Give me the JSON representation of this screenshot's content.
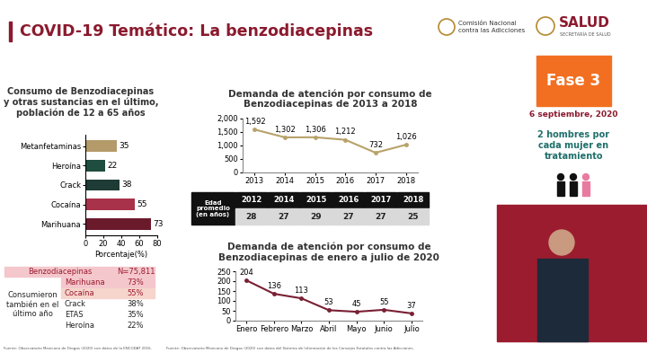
{
  "title": "COVID-19 Temático: La benzodiacepinas",
  "logos": {
    "conadic": "Comisión Nacional\ncontra las Adicciones",
    "salud": "SALUD",
    "salud_sub": "SECRETARÍA DE SALUD"
  },
  "sidebar": {
    "phase": "Fase 3",
    "date": "6 septiembre, 2020",
    "note": "2 hombres por\ncada mujer en\ntratamiento"
  },
  "chart_data": [
    {
      "type": "bar",
      "orientation": "horizontal",
      "title": "Consumo de Benzodiacepinas\ny otras sustancias en el último,\npoblación de 12 a 65 años",
      "categories": [
        "Metanfetaminas",
        "Heroína",
        "Crack",
        "Cocaína",
        "Marihuana"
      ],
      "values": [
        35,
        22,
        38,
        55,
        73
      ],
      "colors": [
        "#b59a6a",
        "#1f4d3f",
        "#1e3b35",
        "#a8324a",
        "#6b1a2c"
      ],
      "xlabel": "Porcentaje(%)",
      "xlim": [
        0,
        80
      ],
      "xticks": [
        0,
        20,
        40,
        60,
        80
      ],
      "data_labels": true,
      "grid": false
    },
    {
      "type": "line",
      "title": "Demanda de atención por consumo de\nBenzodiacepinas de 2013 a 2018",
      "categories": [
        "2013",
        "2014",
        "2015",
        "2016",
        "2017",
        "2018"
      ],
      "values": [
        1592,
        1302,
        1306,
        1212,
        732,
        1026
      ],
      "value_labels": [
        "1,592",
        "1,302",
        "1,306",
        "1,212",
        "732",
        "1,026"
      ],
      "color": "#b8a26a",
      "marker": "o",
      "line_style": "solid",
      "ylim": [
        0,
        2000
      ],
      "yticks": [
        0,
        500,
        {
          "value": 1000,
          "label": "1,000"
        },
        {
          "value": 1500,
          "label": "1,500"
        },
        {
          "value": 2000,
          "label": "2,000"
        }
      ],
      "data_labels": true,
      "grid": false
    },
    {
      "type": "line",
      "title": "Demanda de atención por consumo de\nBenzodiacepinas de enero a julio de 2020",
      "categories": [
        "Enero",
        "Febrero",
        "Marzo",
        "Abril",
        "Mayo",
        "Junio",
        "Julio"
      ],
      "values": [
        204,
        136,
        113,
        53,
        45,
        55,
        37
      ],
      "color": "#7a1f33",
      "marker": "o",
      "line_style": "solid",
      "ylim": [
        0,
        250
      ],
      "yticks": [
        0,
        50,
        100,
        150,
        200,
        250
      ],
      "data_labels": true,
      "grid": false
    }
  ],
  "age_table": {
    "row_label": "Edad\npromedio\n(en años)",
    "years": [
      2012,
      2014,
      2015,
      2016,
      2017,
      2018
    ],
    "values": [
      28,
      27,
      29,
      27,
      27,
      25
    ]
  },
  "substance_table": {
    "header": [
      "Benzodiacepinas",
      "N=75,811"
    ],
    "row_label": "Consumieron\ntambién en el\núltimo año",
    "rows": [
      [
        "Marihuana",
        "73%"
      ],
      [
        "Cocaína",
        "55%"
      ],
      [
        "Crack",
        "38%"
      ],
      [
        "ETAS",
        "35%"
      ],
      [
        "Heroína",
        "22%"
      ]
    ]
  },
  "footnotes": [
    "Fuente: Observatorio Mexicano de Drogas (2020) con datos de la ENCODAT 2016.",
    "Fuente: Observatorio Mexicano de Drogas (2020) con datos del Sistema de Información de los Consejos Estatales contra las Adicciones."
  ]
}
